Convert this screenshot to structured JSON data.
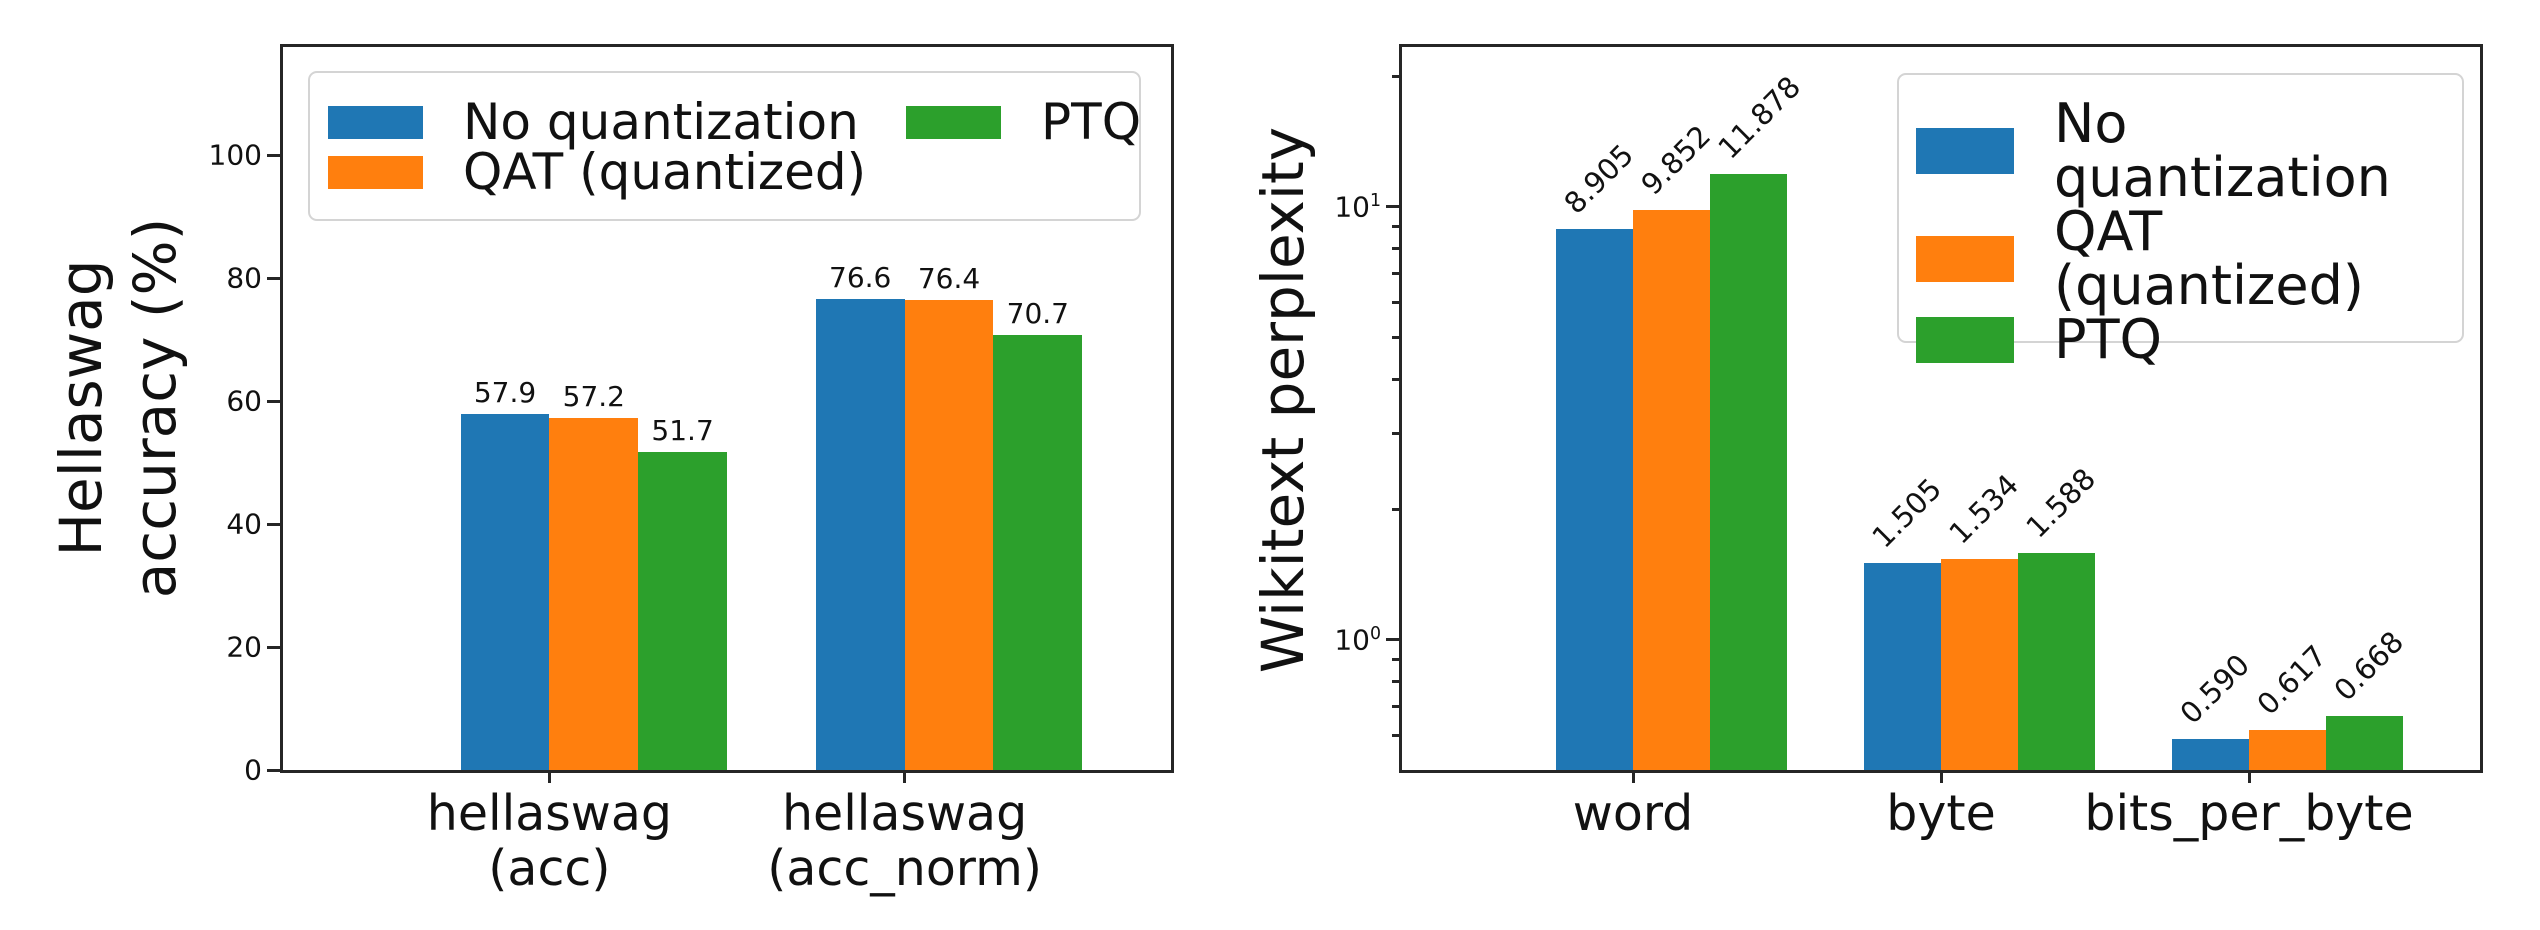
{
  "colors": {
    "blue": "#1f77b4",
    "orange": "#ff7f0e",
    "green": "#2ca02c",
    "text": "#111111",
    "spine": "#262626"
  },
  "legend": {
    "items": [
      {
        "label": "No quantization",
        "color_key": "blue"
      },
      {
        "label": "QAT (quantized)",
        "color_key": "orange"
      },
      {
        "label": "PTQ",
        "color_key": "green"
      }
    ]
  },
  "chart_data": [
    {
      "type": "bar",
      "title": "",
      "xlabel": "",
      "ylabel": "Hellaswag\naccuracy (%)",
      "yscale": "linear",
      "ylim": [
        0,
        117.6
      ],
      "grid": false,
      "legend_position": "upper left",
      "yticks": [
        {
          "value": 0,
          "label": "0"
        },
        {
          "value": 20,
          "label": "20"
        },
        {
          "value": 40,
          "label": "40"
        },
        {
          "value": 60,
          "label": "60"
        },
        {
          "value": 80,
          "label": "80"
        },
        {
          "value": 100,
          "label": "100"
        }
      ],
      "yticks_minor": [],
      "categories": [
        "hellaswag\n(acc)",
        "hellaswag\n(acc_norm)"
      ],
      "series": [
        {
          "name": "No quantization",
          "color": "#1f77b4",
          "values": [
            57.9,
            76.6
          ],
          "labels": [
            "57.9",
            "76.6"
          ]
        },
        {
          "name": "QAT (quantized)",
          "color": "#ff7f0e",
          "values": [
            57.2,
            76.4
          ],
          "labels": [
            "57.2",
            "76.4"
          ]
        },
        {
          "name": "PTQ",
          "color": "#2ca02c",
          "values": [
            51.7,
            70.7
          ],
          "labels": [
            "51.7",
            "70.7"
          ]
        }
      ],
      "bar_label_rotation": 0
    },
    {
      "type": "bar",
      "title": "",
      "xlabel": "",
      "ylabel": "Wikitext perplexity",
      "yscale": "log",
      "ylim": [
        0.5,
        23.4
      ],
      "grid": false,
      "legend_position": "upper right",
      "yticks": [
        {
          "value": 10,
          "label": "10^1"
        },
        {
          "value": 1,
          "label": "10^0"
        }
      ],
      "yticks_minor": [
        20,
        9,
        8,
        7,
        6,
        5,
        4,
        3,
        2,
        0.9,
        0.8,
        0.7,
        0.6
      ],
      "categories": [
        "word",
        "byte",
        "bits_per_byte"
      ],
      "series": [
        {
          "name": "No quantization",
          "color": "#1f77b4",
          "values": [
            8.905,
            1.505,
            0.59
          ],
          "labels": [
            "8.905",
            "1.505",
            "0.590"
          ]
        },
        {
          "name": "QAT (quantized)",
          "color": "#ff7f0e",
          "values": [
            9.852,
            1.534,
            0.617
          ],
          "labels": [
            "9.852",
            "1.534",
            "0.617"
          ]
        },
        {
          "name": "PTQ",
          "color": "#2ca02c",
          "values": [
            11.878,
            1.588,
            0.668
          ],
          "labels": [
            "11.878",
            "1.588",
            "0.668"
          ]
        }
      ],
      "bar_label_rotation": 45
    }
  ]
}
